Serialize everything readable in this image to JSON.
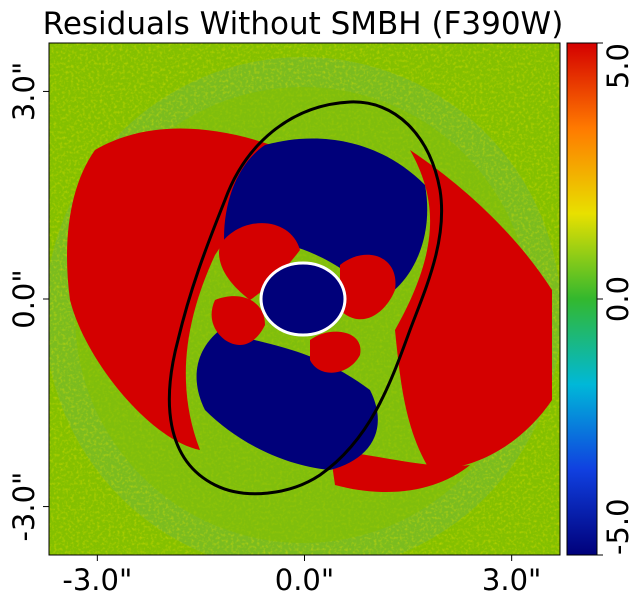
{
  "chart_data": {
    "type": "heatmap",
    "title": "Residuals Without SMBH (F390W)",
    "xlabel": "",
    "ylabel": "",
    "xlim": [
      -3.7,
      3.7
    ],
    "ylim": [
      -3.7,
      3.7
    ],
    "x_ticks": [
      {
        "value": -3.0,
        "label": "-3.0\""
      },
      {
        "value": 0.0,
        "label": "0.0\""
      },
      {
        "value": 3.0,
        "label": "3.0\""
      }
    ],
    "y_ticks": [
      {
        "value": -3.0,
        "label": "-3.0\""
      },
      {
        "value": 0.0,
        "label": "0.0\""
      },
      {
        "value": 3.0,
        "label": "3.0\""
      }
    ],
    "colorbar": {
      "range": [
        -5.0,
        5.0
      ],
      "ticks": [
        {
          "value": 5.0,
          "label": "5.0"
        },
        {
          "value": 0.0,
          "label": "0.0"
        },
        {
          "value": -5.0,
          "label": "-5.0"
        }
      ],
      "colors": [
        "#00007a",
        "#1040e0",
        "#00b8d8",
        "#33b82e",
        "#e8e000",
        "#ff7a00",
        "#d40000"
      ]
    },
    "background_color": "#84c000",
    "high_color": "#d40000",
    "low_color": "#00007a",
    "grid": false
  }
}
